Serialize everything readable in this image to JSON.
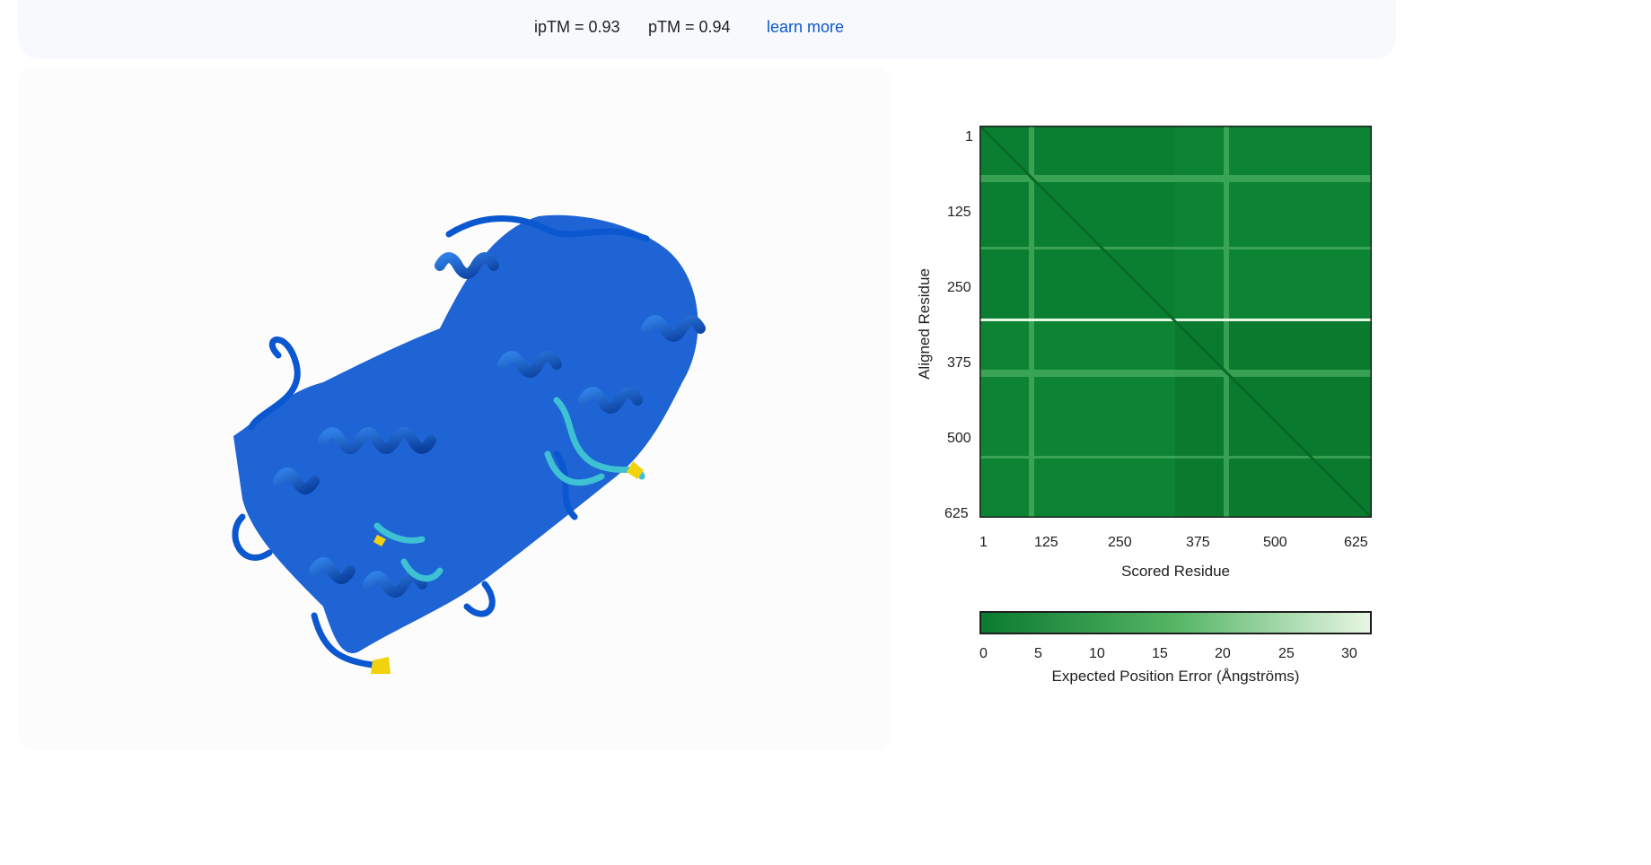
{
  "header": {
    "iptm": "ipTM = 0.93",
    "ptm": "pTM = 0.94",
    "learn_more": "learn more"
  },
  "structure_viewer": {
    "colors": {
      "very_high": "#0b57d0",
      "confident": "#2f7fe6",
      "low": "#3ec1d3",
      "very_low": "#f2d20c"
    }
  },
  "pae_plot": {
    "y_ticks": [
      "1",
      "125",
      "250",
      "375",
      "500",
      "625"
    ],
    "x_ticks": [
      "1",
      "125",
      "250",
      "375",
      "500",
      "625"
    ],
    "y_label": "Aligned Residue",
    "x_label": "Scored Residue",
    "colorbar_ticks": [
      "0",
      "5",
      "10",
      "15",
      "20",
      "25",
      "30"
    ],
    "colorbar_label": "Expected Position Error (Ångströms)",
    "colors": {
      "low": "#0a7a2f",
      "high": "#e8f6e4"
    }
  }
}
